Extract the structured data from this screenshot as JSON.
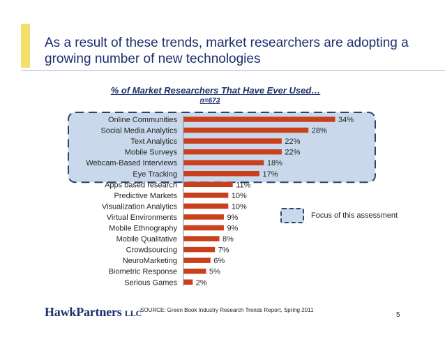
{
  "slide": {
    "title": "As a result of these trends, market researchers are adopting a growing number of new technologies",
    "source": "SOURCE: Green Book Industry Research Trends Report, Spring 2011",
    "page_number": "5",
    "logo": {
      "name": "HawkPartners",
      "suffix": "LLC"
    },
    "legend_label": "Focus of this assessment"
  },
  "colors": {
    "bar": "#c8401c",
    "title": "#1a2f6b",
    "accent": "#f5df6b",
    "highlight_fill": "#c9d9eb",
    "highlight_border": "#27456f"
  },
  "chart_data": {
    "type": "bar",
    "orientation": "horizontal",
    "title": "% of Market Researchers That Have Ever Used…",
    "subtitle": "n=673",
    "xlabel": "",
    "ylabel": "",
    "xlim": [
      0,
      35
    ],
    "grid": false,
    "categories": [
      "Online Communities",
      "Social Media Analytics",
      "Text Analytics",
      "Mobile Surveys",
      "Webcam-Based Interviews",
      "Eye Tracking",
      "Apps based research",
      "Predictive Markets",
      "Visualization Analytics",
      "Virtual Environments",
      "Mobile Ethnography",
      "Mobile Qualitative",
      "Crowdsourcing",
      "NeuroMarketing",
      "Biometric Response",
      "Serious Games"
    ],
    "values": [
      34,
      28,
      22,
      22,
      18,
      17,
      11,
      10,
      10,
      9,
      9,
      8,
      7,
      6,
      5,
      2
    ],
    "data_labels": [
      "34%",
      "28%",
      "22%",
      "22%",
      "18%",
      "17%",
      "11%",
      "10%",
      "10%",
      "9%",
      "9%",
      "8%",
      "7%",
      "6%",
      "5%",
      "2%"
    ],
    "highlighted_categories": [
      "Online Communities",
      "Social Media Analytics",
      "Text Analytics",
      "Mobile Surveys",
      "Webcam-Based Interviews",
      "Eye Tracking"
    ]
  }
}
